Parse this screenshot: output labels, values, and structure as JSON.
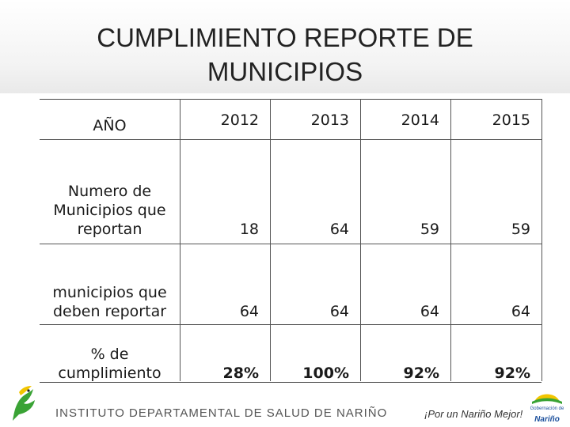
{
  "slide": {
    "title": "CUMPLIMIENTO REPORTE DE\nMUNICIPIOS"
  },
  "table": {
    "header": {
      "label": "AÑO",
      "years": [
        "2012",
        "2013",
        "2014",
        "2015"
      ]
    },
    "rows": [
      {
        "label": "Numero de\nMunicipios que\nreportan",
        "values": [
          "18",
          "64",
          "59",
          "59"
        ],
        "bold": false
      },
      {
        "label": "municipios que\ndeben reportar",
        "values": [
          "64",
          "64",
          "64",
          "64"
        ],
        "bold": false
      },
      {
        "label": "% de\ncumplimiento",
        "values": [
          "28%",
          "100%",
          "92%",
          "92%"
        ],
        "bold": true
      }
    ]
  },
  "footer": {
    "institution": "INSTITUTO DEPARTAMENTAL DE SALUD DE NARIÑO",
    "slogan": "¡Por un Nariño Mejor!",
    "logo_right_caption": "Gobernación de",
    "logo_right_name": "Nariño"
  },
  "colors": {
    "logo_green": "#3aa335",
    "logo_yellow": "#f2c500",
    "logo_blue": "#1b4f9c"
  }
}
